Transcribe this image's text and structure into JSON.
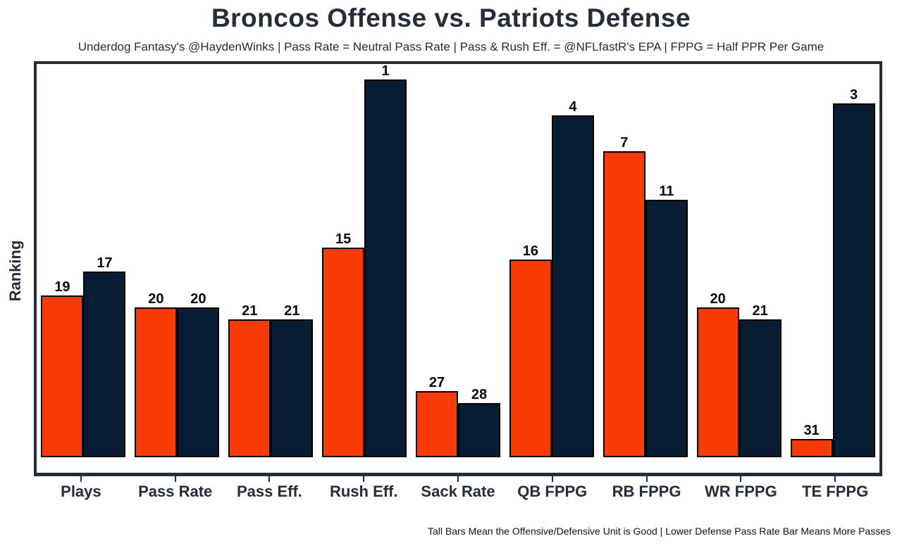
{
  "colors": {
    "offense": "#FB3B06",
    "defense": "#081C33",
    "text_dark": "#242D3C",
    "bar_outline": "#000000",
    "value_label": "#0B0B0B"
  },
  "chart_data": {
    "type": "bar",
    "title": "Broncos Offense vs. Patriots Defense",
    "subtitle": "Underdog Fantasy's @HaydenWinks | Pass Rate = Neutral Pass Rate | Pass & Rush Eff. = @NFLfastR's EPA | FPPG = Half PPR Per Game",
    "footnote": "Tall Bars Mean the Offensive/Defensive Unit is Good | Lower Defense Pass Rate Bar Means More Passes",
    "categories": [
      "Plays",
      "Pass Rate",
      "Pass Eff.",
      "Rush Eff.",
      "Sack Rate",
      "QB FPPG",
      "RB FPPG",
      "WR FPPG",
      "TE FPPG"
    ],
    "series": [
      {
        "name": "Broncos Offense",
        "color_key": "offense",
        "values": [
          19,
          20,
          21,
          15,
          27,
          16,
          7,
          20,
          31
        ]
      },
      {
        "name": "Patriots Defense",
        "color_key": "defense",
        "values": [
          17,
          20,
          21,
          1,
          28,
          4,
          11,
          21,
          3
        ]
      }
    ],
    "xlabel": "",
    "ylabel": "Ranking",
    "ylim": [
      32.5,
      0.5
    ],
    "y_scale_note": "ranking scale, 1 = best = tallest bar; bar height fraction = (32.5 - rank) / 31.5",
    "grid": false,
    "legend": "none",
    "value_labels": true
  }
}
